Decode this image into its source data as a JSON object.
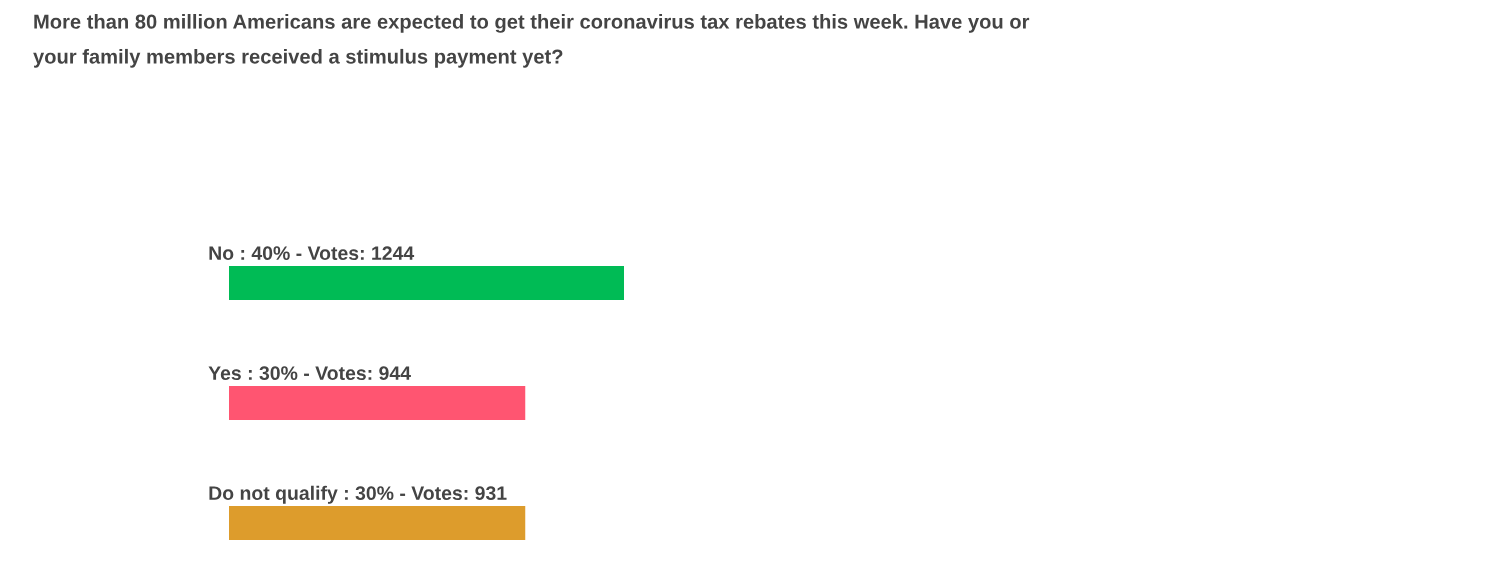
{
  "chart_data": {
    "type": "bar",
    "orientation": "horizontal",
    "title": "More than 80 million Americans are expected to get their coronavirus tax rebates this week. Have you or\nyour family members received a stimulus payment yet?",
    "categories": [
      null,
      null,
      null
    ],
    "values": [
      40,
      30,
      30
    ],
    "colors": [
      "#00bb55",
      "#ff5571",
      "#dd9c2c"
    ],
    "value_labels": [
      "No : 40% - Votes: 1244",
      "Yes : 30% - Votes: 944",
      "Do not qualify : 30% - Votes: 931"
    ]
  }
}
